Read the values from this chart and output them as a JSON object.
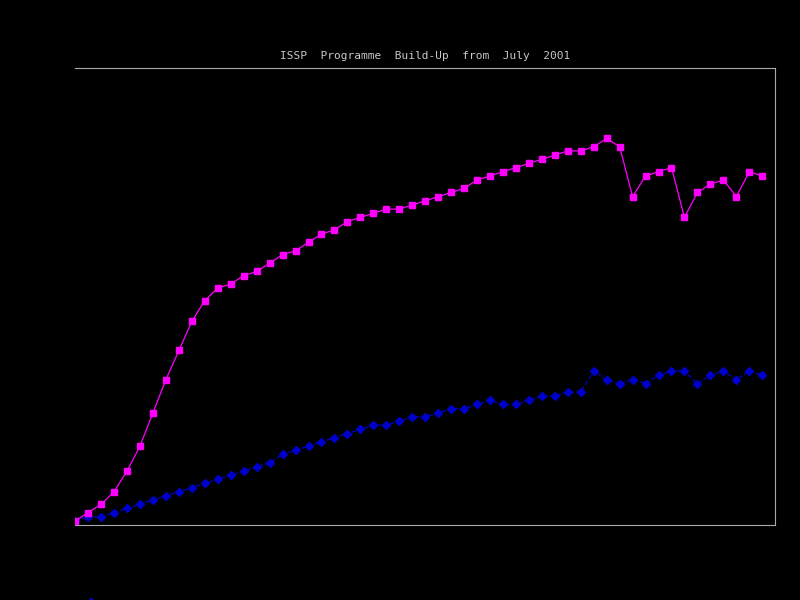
{
  "title": "ISSP  Programme  Build-Up  from  July  2001",
  "background_color": "#000000",
  "plot_bg_color": "#000000",
  "text_color": "#c8c8c8",
  "line1_color": "#0000cc",
  "line2_color": "#ff00ff",
  "line1_style": "--",
  "line2_style": "-",
  "line1_marker": "D",
  "line2_marker": "s",
  "line1_markersize": 4,
  "line2_markersize": 5,
  "xlim": [
    0,
    54
  ],
  "ylim": [
    0,
    110
  ],
  "blue_x": [
    0,
    1,
    2,
    3,
    4,
    5,
    6,
    7,
    8,
    9,
    10,
    11,
    12,
    13,
    14,
    15,
    16,
    17,
    18,
    19,
    20,
    21,
    22,
    23,
    24,
    25,
    26,
    27,
    28,
    29,
    30,
    31,
    32,
    33,
    34,
    35,
    36,
    37,
    38,
    39,
    40,
    41,
    42,
    43,
    44,
    45,
    46,
    47,
    48,
    49,
    50,
    51,
    52,
    53
  ],
  "blue_y": [
    1,
    2,
    2,
    3,
    4,
    5,
    6,
    7,
    8,
    9,
    10,
    11,
    12,
    13,
    14,
    15,
    17,
    18,
    19,
    20,
    21,
    22,
    23,
    24,
    24,
    25,
    26,
    26,
    27,
    28,
    28,
    29,
    30,
    29,
    29,
    30,
    31,
    31,
    32,
    32,
    37,
    35,
    34,
    35,
    34,
    36,
    37,
    37,
    34,
    36,
    37,
    35,
    37,
    36
  ],
  "pink_x": [
    0,
    1,
    2,
    3,
    4,
    5,
    6,
    7,
    8,
    9,
    10,
    11,
    12,
    13,
    14,
    15,
    16,
    17,
    18,
    19,
    20,
    21,
    22,
    23,
    24,
    25,
    26,
    27,
    28,
    29,
    30,
    31,
    32,
    33,
    34,
    35,
    36,
    37,
    38,
    39,
    40,
    41,
    42,
    43,
    44,
    45,
    46,
    47,
    48,
    49,
    50,
    51,
    52,
    53
  ],
  "pink_y": [
    1,
    3,
    5,
    8,
    13,
    19,
    27,
    35,
    42,
    49,
    54,
    57,
    58,
    60,
    61,
    63,
    65,
    66,
    68,
    70,
    71,
    73,
    74,
    75,
    76,
    76,
    77,
    78,
    79,
    80,
    81,
    83,
    84,
    85,
    86,
    87,
    88,
    89,
    90,
    90,
    91,
    93,
    91,
    79,
    84,
    85,
    86,
    74,
    80,
    82,
    83,
    79,
    85,
    84
  ]
}
